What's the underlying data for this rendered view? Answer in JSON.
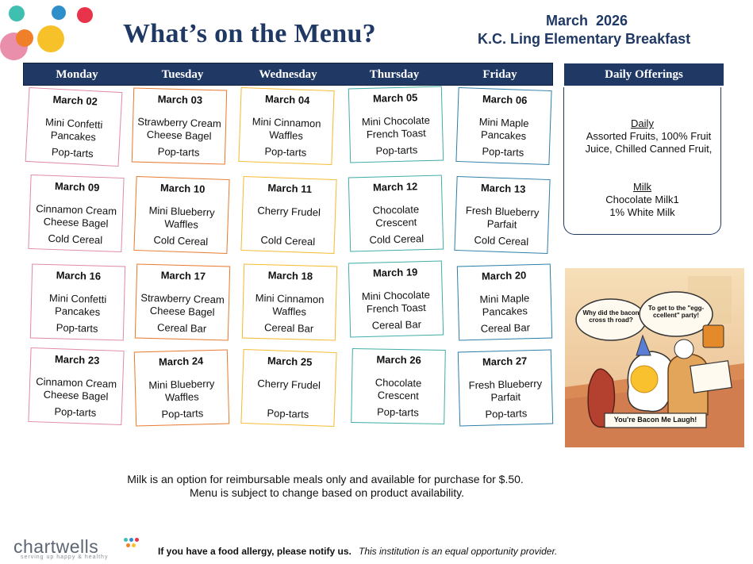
{
  "header": {
    "title": "What’s on the Menu?",
    "month": "March  2026",
    "school": "K.C. Ling Elementary Breakfast"
  },
  "days": [
    "Monday",
    "Tuesday",
    "Wednesday",
    "Thursday",
    "Friday"
  ],
  "weeks": [
    [
      {
        "date": "March 02",
        "item": "Mini Confetti Pancakes",
        "side": "Pop-tarts"
      },
      {
        "date": "March 03",
        "item": "Strawberry Cream Cheese Bagel",
        "side": "Pop-tarts"
      },
      {
        "date": "March 04",
        "item": "Mini Cinnamon Waffles",
        "side": "Pop-tarts"
      },
      {
        "date": "March 05",
        "item": "Mini Chocolate French Toast",
        "side": "Pop-tarts"
      },
      {
        "date": "March 06",
        "item": "Mini Maple Pancakes",
        "side": "Pop-tarts"
      }
    ],
    [
      {
        "date": "March 09",
        "item": "Cinnamon Cream Cheese Bagel",
        "side": "Cold Cereal"
      },
      {
        "date": "March 10",
        "item": "Mini Blueberry Waffles",
        "side": "Cold Cereal"
      },
      {
        "date": "March 11",
        "item": "Cherry Frudel",
        "side": "Cold Cereal"
      },
      {
        "date": "March 12",
        "item": "Chocolate Crescent",
        "side": "Cold Cereal"
      },
      {
        "date": "March 13",
        "item": "Fresh Blueberry Parfait",
        "side": "Cold Cereal"
      }
    ],
    [
      {
        "date": "March 16",
        "item": "Mini Confetti Pancakes",
        "side": "Pop-tarts"
      },
      {
        "date": "March 17",
        "item": "Strawberry Cream Cheese Bagel",
        "side": "Cereal Bar"
      },
      {
        "date": "March 18",
        "item": "Mini Cinnamon Waffles",
        "side": "Cereal Bar"
      },
      {
        "date": "March 19",
        "item": "Mini Chocolate French Toast",
        "side": "Cereal Bar"
      },
      {
        "date": "March 20",
        "item": "Mini Maple Pancakes",
        "side": "Cereal Bar"
      }
    ],
    [
      {
        "date": "March 23",
        "item": "Cinnamon Cream Cheese Bagel",
        "side": "Pop-tarts"
      },
      {
        "date": "March 24",
        "item": "Mini Blueberry Waffles",
        "side": "Pop-tarts"
      },
      {
        "date": "March 25",
        "item": "Cherry Frudel",
        "side": "Pop-tarts"
      },
      {
        "date": "March 26",
        "item": "Chocolate Crescent",
        "side": "Pop-tarts"
      },
      {
        "date": "March 27",
        "item": "Fresh Blueberry Parfait",
        "side": "Pop-tarts"
      }
    ]
  ],
  "offerings": {
    "title": "Daily Offerings",
    "daily_heading": "Daily",
    "daily_text": "Assorted Fruits, 100% Fruit Juice, Chilled Canned Fruit,",
    "milk_heading": "Milk",
    "milk_items": [
      "Chocolate Milk1",
      "1% White Milk"
    ]
  },
  "cartoon": {
    "bubble_left": "Why did the bacon cross th road?",
    "bubble_right": "To get to the \"egg-ccellent\" party!",
    "banner": "You're Bacon Me Laugh!"
  },
  "notes": [
    "Milk is an option for reimbursable meals only and available for purchase for $.50.",
    "Menu is subject to change based on product availability."
  ],
  "footer": {
    "logo": "chartwells",
    "logo_tagline": "serving up happy & healthy",
    "allergy": "If you have a food allergy, please notify us.",
    "eeo": "This institution is an equal opportunity provider."
  },
  "colors": {
    "navy": "#1f3864",
    "monday": "#e089a6",
    "tuesday": "#e8792c",
    "wednesday": "#f4b92e",
    "thursday": "#3fada6",
    "friday": "#2b7ea8"
  }
}
